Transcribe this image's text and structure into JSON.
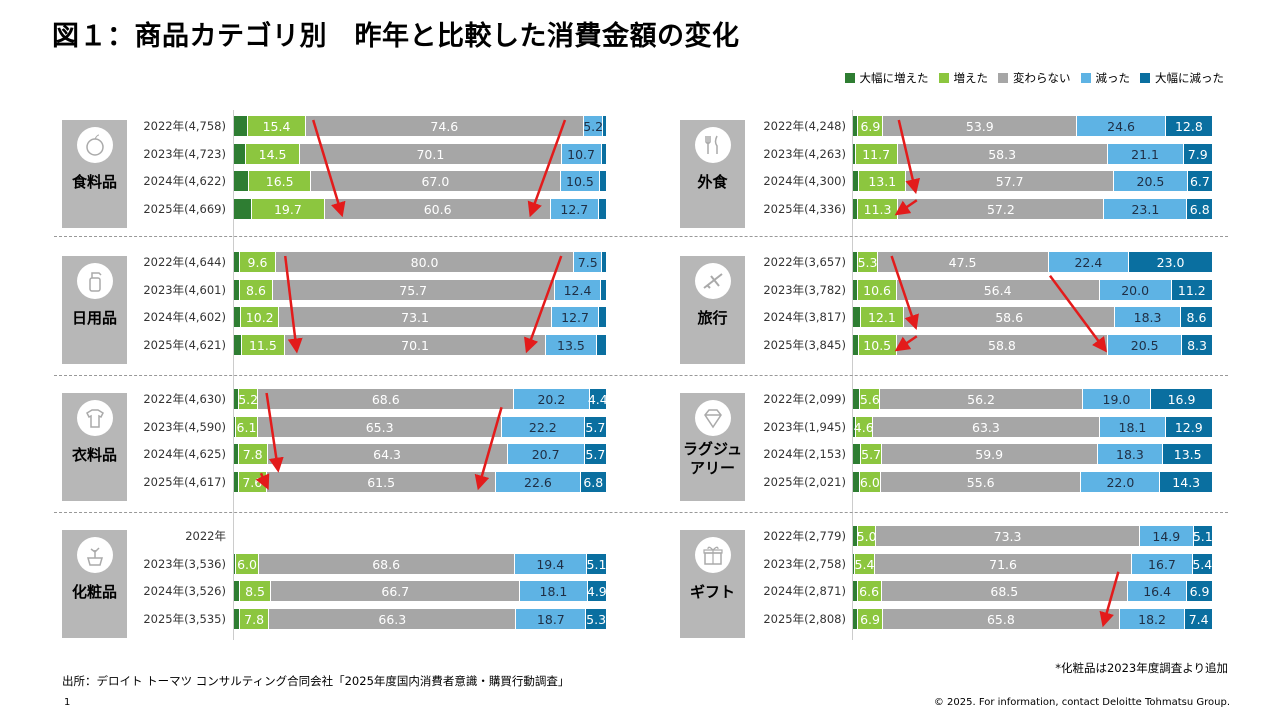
{
  "title": "図１：商品カテゴリ別　昨年と比較した消費金額の変化",
  "colors": {
    "large_increase": "#2e7d32",
    "increase": "#8cc63f",
    "same": "#a6a6a6",
    "decrease": "#5eb3e4",
    "large_decrease": "#0a6fa0",
    "arrow": "#e31b1b"
  },
  "chart_data": {
    "type": "bar",
    "orientation": "horizontal-stacked-100",
    "title": "図１：商品カテゴリ別　昨年と比較した消費金額の変化",
    "legend": [
      "大幅に増えた",
      "増えた",
      "変わらない",
      "減った",
      "大幅に減った"
    ],
    "legend_position": "top-right",
    "panels": [
      {
        "category": "食料品",
        "rows": [
          {
            "label": "2022年(4,758)",
            "values": [
              4.1,
              15.4,
              74.6,
              5.2,
              0.7
            ],
            "labels": [
              null,
              "15.4",
              "74.6",
              "5.2",
              null
            ]
          },
          {
            "label": "2023年(4,723)",
            "values": [
              3.5,
              14.5,
              70.1,
              10.7,
              1.2
            ],
            "labels": [
              null,
              "14.5",
              "70.1",
              "10.7",
              null
            ]
          },
          {
            "label": "2024年(4,622)",
            "values": [
              4.4,
              16.5,
              67.0,
              10.5,
              1.6
            ],
            "labels": [
              null,
              "16.5",
              "67.0",
              "10.5",
              null
            ]
          },
          {
            "label": "2025年(4,669)",
            "values": [
              5.0,
              19.7,
              60.6,
              12.7,
              2.0
            ],
            "labels": [
              null,
              "19.7",
              "60.6",
              "12.7",
              null
            ]
          }
        ]
      },
      {
        "category": "外食",
        "rows": [
          {
            "label": "2022年(4,248)",
            "values": [
              1.8,
              6.9,
              53.9,
              24.6,
              12.8
            ],
            "labels": [
              null,
              "6.9",
              "53.9",
              "24.6",
              "12.8"
            ]
          },
          {
            "label": "2023年(4,263)",
            "values": [
              1.0,
              11.7,
              58.3,
              21.1,
              7.9
            ],
            "labels": [
              null,
              "11.7",
              "58.3",
              "21.1",
              "7.9"
            ]
          },
          {
            "label": "2024年(4,300)",
            "values": [
              2.0,
              13.1,
              57.7,
              20.5,
              6.7
            ],
            "labels": [
              null,
              "13.1",
              "57.7",
              "20.5",
              "6.7"
            ]
          },
          {
            "label": "2025年(4,336)",
            "values": [
              1.6,
              11.3,
              57.2,
              23.1,
              6.8
            ],
            "labels": [
              null,
              "11.3",
              "57.2",
              "23.1",
              "6.8"
            ]
          }
        ]
      },
      {
        "category": "日用品",
        "rows": [
          {
            "label": "2022年(4,644)",
            "values": [
              1.9,
              9.6,
              80.0,
              7.5,
              1.0
            ],
            "labels": [
              null,
              "9.6",
              "80.0",
              "7.5",
              null
            ]
          },
          {
            "label": "2023年(4,601)",
            "values": [
              2.0,
              8.6,
              75.7,
              12.4,
              1.3
            ],
            "labels": [
              null,
              "8.6",
              "75.7",
              "12.4",
              null
            ]
          },
          {
            "label": "2024年(4,602)",
            "values": [
              2.2,
              10.2,
              73.1,
              12.7,
              1.8
            ],
            "labels": [
              null,
              "10.2",
              "73.1",
              "12.7",
              null
            ]
          },
          {
            "label": "2025年(4,621)",
            "values": [
              2.4,
              11.5,
              70.1,
              13.5,
              2.5
            ],
            "labels": [
              null,
              "11.5",
              "70.1",
              "13.5",
              null
            ]
          }
        ]
      },
      {
        "category": "旅行",
        "rows": [
          {
            "label": "2022年(3,657)",
            "values": [
              1.8,
              5.3,
              47.5,
              22.4,
              23.0
            ],
            "labels": [
              null,
              "5.3",
              "47.5",
              "22.4",
              "23.0"
            ]
          },
          {
            "label": "2023年(3,782)",
            "values": [
              1.8,
              10.6,
              56.4,
              20.0,
              11.2
            ],
            "labels": [
              null,
              "10.6",
              "56.4",
              "20.0",
              "11.2"
            ]
          },
          {
            "label": "2024年(3,817)",
            "values": [
              2.4,
              12.1,
              58.6,
              18.3,
              8.6
            ],
            "labels": [
              null,
              "12.1",
              "58.6",
              "18.3",
              "8.6"
            ]
          },
          {
            "label": "2025年(3,845)",
            "values": [
              1.9,
              10.5,
              58.8,
              20.5,
              8.3
            ],
            "labels": [
              null,
              "10.5",
              "58.8",
              "20.5",
              "8.3"
            ]
          }
        ]
      },
      {
        "category": "衣料品",
        "rows": [
          {
            "label": "2022年(4,630)",
            "values": [
              1.6,
              5.2,
              68.6,
              20.2,
              4.4
            ],
            "labels": [
              null,
              "5.2",
              "68.6",
              "20.2",
              "4.4"
            ]
          },
          {
            "label": "2023年(4,590)",
            "values": [
              0.7,
              6.1,
              65.3,
              22.2,
              5.7
            ],
            "labels": [
              null,
              "6.1",
              "65.3",
              "22.2",
              "5.7"
            ]
          },
          {
            "label": "2024年(4,625)",
            "values": [
              1.5,
              7.8,
              64.3,
              20.7,
              5.7
            ],
            "labels": [
              null,
              "7.8",
              "64.3",
              "20.7",
              "5.7"
            ]
          },
          {
            "label": "2025年(4,617)",
            "values": [
              1.5,
              7.6,
              61.5,
              22.6,
              6.8
            ],
            "labels": [
              null,
              "7.6",
              "61.5",
              "22.6",
              "6.8"
            ]
          }
        ]
      },
      {
        "category": "ラグジュアリー",
        "category_lines": [
          "ラグジュ",
          "アリー"
        ],
        "rows": [
          {
            "label": "2022年(2,099)",
            "values": [
              2.3,
              5.6,
              56.2,
              19.0,
              16.9
            ],
            "labels": [
              null,
              "5.6",
              "56.2",
              "19.0",
              "16.9"
            ]
          },
          {
            "label": "2023年(1,945)",
            "values": [
              1.1,
              4.6,
              63.3,
              18.1,
              12.9
            ],
            "labels": [
              null,
              "4.6",
              "63.3",
              "18.1",
              "12.9"
            ]
          },
          {
            "label": "2024年(2,153)",
            "values": [
              2.6,
              5.7,
              59.9,
              18.3,
              13.5
            ],
            "labels": [
              null,
              "5.7",
              "59.9",
              "18.3",
              "13.5"
            ]
          },
          {
            "label": "2025年(2,021)",
            "values": [
              2.1,
              6.0,
              55.6,
              22.0,
              14.3
            ],
            "labels": [
              null,
              "6.0",
              "55.6",
              "22.0",
              "14.3"
            ]
          }
        ]
      },
      {
        "category": "化粧品",
        "rows": [
          {
            "label": "2022年",
            "values": null,
            "labels": null
          },
          {
            "label": "2023年(3,536)",
            "values": [
              0.9,
              6.0,
              68.6,
              19.4,
              5.1
            ],
            "labels": [
              null,
              "6.0",
              "68.6",
              "19.4",
              "5.1"
            ]
          },
          {
            "label": "2024年(3,526)",
            "values": [
              1.8,
              8.5,
              66.7,
              18.1,
              4.9
            ],
            "labels": [
              null,
              "8.5",
              "66.7",
              "18.1",
              "4.9"
            ]
          },
          {
            "label": "2025年(3,535)",
            "values": [
              1.9,
              7.8,
              66.3,
              18.7,
              5.3
            ],
            "labels": [
              null,
              "7.8",
              "66.3",
              "18.7",
              "5.3"
            ]
          }
        ]
      },
      {
        "category": "ギフト",
        "rows": [
          {
            "label": "2022年(2,779)",
            "values": [
              1.7,
              5.0,
              73.3,
              14.9,
              5.1
            ],
            "labels": [
              null,
              "5.0",
              "73.3",
              "14.9",
              "5.1"
            ]
          },
          {
            "label": "2023年(2,758)",
            "values": [
              0.9,
              5.4,
              71.6,
              16.7,
              5.4
            ],
            "labels": [
              null,
              "5.4",
              "71.6",
              "16.7",
              "5.4"
            ]
          },
          {
            "label": "2024年(2,871)",
            "values": [
              1.6,
              6.6,
              68.5,
              16.4,
              6.9
            ],
            "labels": [
              null,
              "6.6",
              "68.5",
              "16.4",
              "6.9"
            ]
          },
          {
            "label": "2025年(2,808)",
            "values": [
              1.7,
              6.9,
              65.8,
              18.2,
              7.4
            ],
            "labels": [
              null,
              "6.9",
              "65.8",
              "18.2",
              "7.4"
            ]
          }
        ]
      }
    ],
    "xlim": [
      0,
      100
    ]
  },
  "footer": {
    "note": "*化粧品は2023年度調査より追加",
    "source": "出所：デロイト トーマツ コンサルティング合同会社「2025年度国内消費者意識・購買行動調査」",
    "page": "1",
    "copyright": "© 2025. For information, contact Deloitte Tohmatsu Group."
  }
}
